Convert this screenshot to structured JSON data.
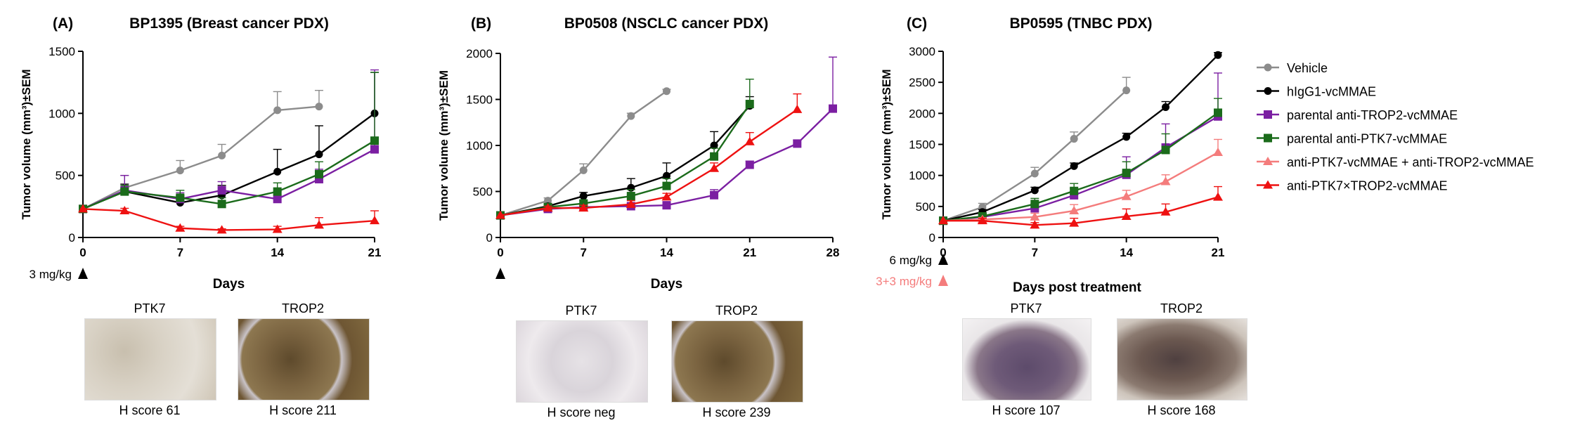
{
  "colors": {
    "Vehicle": "#8c8c8c",
    "hIgG1-vcMMAE": "#000000",
    "parental anti-TROP2-vcMMAE": "#7b1fa2",
    "parental anti-PTK7-vcMMAE": "#1b6b1b",
    "anti-PTK7-vcMMAE + anti-TROP2-vcMMAE": "#f47c7c",
    "anti-PTK7×TROP2-vcMMAE": "#ee1111"
  },
  "legend": {
    "placement": "right",
    "items": [
      {
        "label": "Vehicle",
        "marker": "circle"
      },
      {
        "label": "hIgG1-vcMMAE",
        "marker": "circle"
      },
      {
        "label": "parental anti-TROP2-vcMMAE",
        "marker": "square"
      },
      {
        "label": "parental anti-PTK7-vcMMAE",
        "marker": "square"
      },
      {
        "label": "anti-PTK7-vcMMAE + anti-TROP2-vcMMAE",
        "marker": "triangle"
      },
      {
        "label": "anti-PTK7×TROP2-vcMMAE",
        "marker": "triangle"
      }
    ]
  },
  "chart_data": [
    {
      "type": "line",
      "panel": "(A)",
      "title": "BP1395 (Breast cancer PDX)",
      "xlabel": "Days",
      "ylabel": "Tumor volume (mm³)±SEM",
      "xlim": [
        0,
        21
      ],
      "ylim": [
        0,
        1500
      ],
      "xticks": [
        0,
        7,
        14,
        21
      ],
      "yticks": [
        0,
        500,
        1000,
        1500
      ],
      "dose_annotations": [
        {
          "text": "3 mg/kg",
          "color": "#000000"
        }
      ],
      "series": [
        {
          "name": "Vehicle",
          "x": [
            0,
            3,
            7,
            10,
            14,
            17
          ],
          "y": [
            230,
            400,
            540,
            660,
            1025,
            1055
          ],
          "err": [
            0,
            100,
            80,
            90,
            150,
            130
          ]
        },
        {
          "name": "hIgG1-vcMMAE",
          "x": [
            0,
            3,
            7,
            10,
            14,
            17,
            21
          ],
          "y": [
            230,
            370,
            280,
            340,
            530,
            670,
            1000
          ],
          "err": [
            0,
            60,
            60,
            80,
            180,
            230,
            330
          ]
        },
        {
          "name": "parental anti-TROP2-vcMMAE",
          "x": [
            0,
            3,
            7,
            10,
            14,
            17,
            21
          ],
          "y": [
            230,
            380,
            310,
            380,
            310,
            470,
            710
          ],
          "err": [
            0,
            120,
            50,
            70,
            60,
            80,
            640
          ]
        },
        {
          "name": "parental anti-PTK7-vcMMAE",
          "x": [
            0,
            3,
            7,
            10,
            14,
            17,
            21
          ],
          "y": [
            230,
            370,
            320,
            270,
            370,
            510,
            780
          ],
          "err": [
            0,
            50,
            60,
            50,
            70,
            100,
            550
          ]
        },
        {
          "name": "anti-PTK7×TROP2-vcMMAE",
          "x": [
            0,
            3,
            7,
            10,
            14,
            17,
            21
          ],
          "y": [
            230,
            215,
            75,
            60,
            65,
            100,
            135
          ],
          "err": [
            0,
            20,
            15,
            10,
            25,
            60,
            80
          ]
        }
      ]
    },
    {
      "type": "line",
      "panel": "(B)",
      "title": "BP0508 (NSCLC cancer PDX)",
      "xlabel": "Days",
      "ylabel": "Tumor volume (mm³)±SEM",
      "xlim": [
        0,
        28
      ],
      "ylim": [
        0,
        2000
      ],
      "xticks": [
        0,
        7,
        14,
        21,
        28
      ],
      "yticks": [
        0,
        500,
        1000,
        1500,
        2000
      ],
      "dose_annotations": [
        {
          "text": "",
          "color": "#000000"
        }
      ],
      "series": [
        {
          "name": "Vehicle",
          "x": [
            0,
            4,
            7,
            11,
            14
          ],
          "y": [
            240,
            400,
            730,
            1320,
            1590
          ],
          "err": [
            0,
            30,
            70,
            30,
            20
          ]
        },
        {
          "name": "hIgG1-vcMMAE",
          "x": [
            0,
            4,
            7,
            11,
            14,
            18,
            21
          ],
          "y": [
            240,
            340,
            450,
            540,
            670,
            1000,
            1430
          ],
          "err": [
            0,
            30,
            40,
            100,
            140,
            150,
            100
          ]
        },
        {
          "name": "parental anti-TROP2-vcMMAE",
          "x": [
            0,
            4,
            7,
            11,
            14,
            18,
            21,
            25,
            28
          ],
          "y": [
            240,
            310,
            330,
            340,
            350,
            460,
            790,
            1020,
            1400
          ],
          "err": [
            0,
            20,
            30,
            30,
            30,
            60,
            40,
            40,
            560
          ]
        },
        {
          "name": "parental anti-PTK7-vcMMAE",
          "x": [
            0,
            4,
            7,
            11,
            14,
            18,
            21
          ],
          "y": [
            240,
            330,
            370,
            450,
            560,
            880,
            1450
          ],
          "err": [
            0,
            20,
            30,
            70,
            80,
            90,
            270
          ]
        },
        {
          "name": "anti-PTK7×TROP2-vcMMAE",
          "x": [
            0,
            4,
            7,
            11,
            14,
            18,
            21,
            25
          ],
          "y": [
            240,
            320,
            320,
            360,
            440,
            750,
            1040,
            1390
          ],
          "err": [
            0,
            20,
            30,
            40,
            40,
            60,
            100,
            170
          ]
        }
      ]
    },
    {
      "type": "line",
      "panel": "(C)",
      "title": "BP0595 (TNBC PDX)",
      "xlabel": "Days post treatment",
      "ylabel": "Tumor volume (mm³)±SEM",
      "xlim": [
        0,
        21
      ],
      "ylim": [
        0,
        3000
      ],
      "xticks": [
        0,
        7,
        14,
        21
      ],
      "yticks": [
        0,
        500,
        1000,
        1500,
        2000,
        2500,
        3000
      ],
      "dose_annotations": [
        {
          "text": "6 mg/kg",
          "color": "#000000"
        },
        {
          "text": "3+3 mg/kg",
          "color": "#f47c7c"
        }
      ],
      "series": [
        {
          "name": "Vehicle",
          "x": [
            0,
            3,
            7,
            10,
            14
          ],
          "y": [
            270,
            490,
            1030,
            1590,
            2370
          ],
          "err": [
            0,
            60,
            100,
            110,
            210
          ]
        },
        {
          "name": "hIgG1-vcMMAE",
          "x": [
            0,
            3,
            7,
            10,
            14,
            17,
            21
          ],
          "y": [
            270,
            410,
            760,
            1150,
            1620,
            2100,
            2940
          ],
          "err": [
            0,
            40,
            50,
            50,
            60,
            90,
            40
          ]
        },
        {
          "name": "parental anti-TROP2-vcMMAE",
          "x": [
            0,
            3,
            7,
            10,
            14,
            17,
            21
          ],
          "y": [
            270,
            330,
            470,
            680,
            1010,
            1450,
            1950
          ],
          "err": [
            0,
            40,
            70,
            110,
            290,
            380,
            700
          ]
        },
        {
          "name": "parental anti-PTK7-vcMMAE",
          "x": [
            0,
            3,
            7,
            10,
            14,
            17,
            21
          ],
          "y": [
            270,
            340,
            540,
            750,
            1040,
            1410,
            2010
          ],
          "err": [
            0,
            50,
            90,
            120,
            180,
            260,
            230
          ]
        },
        {
          "name": "anti-PTK7-vcMMAE + anti-TROP2-vcMMAE",
          "x": [
            0,
            3,
            7,
            10,
            14,
            17,
            21
          ],
          "y": [
            270,
            290,
            330,
            430,
            660,
            900,
            1370
          ],
          "err": [
            0,
            30,
            60,
            100,
            100,
            110,
            210
          ]
        },
        {
          "name": "anti-PTK7×TROP2-vcMMAE",
          "x": [
            0,
            3,
            7,
            10,
            14,
            17,
            21
          ],
          "y": [
            270,
            270,
            200,
            230,
            340,
            410,
            650
          ],
          "err": [
            0,
            40,
            40,
            80,
            120,
            130,
            170
          ]
        }
      ]
    }
  ],
  "ihc_images": [
    {
      "panel": "(A)",
      "items": [
        {
          "label": "PTK7",
          "score": "H score 61",
          "tone": "light"
        },
        {
          "label": "TROP2",
          "score": "H score 211",
          "tone": "dark"
        }
      ]
    },
    {
      "panel": "(B)",
      "items": [
        {
          "label": "PTK7",
          "score": "H score neg",
          "tone": "pale"
        },
        {
          "label": "TROP2",
          "score": "H score 239",
          "tone": "dark"
        }
      ]
    },
    {
      "panel": "(C)",
      "items": [
        {
          "label": "PTK7",
          "score": "H score 107",
          "tone": "tissue"
        },
        {
          "label": "TROP2",
          "score": "H score 168",
          "tone": "tissue2"
        }
      ]
    }
  ]
}
